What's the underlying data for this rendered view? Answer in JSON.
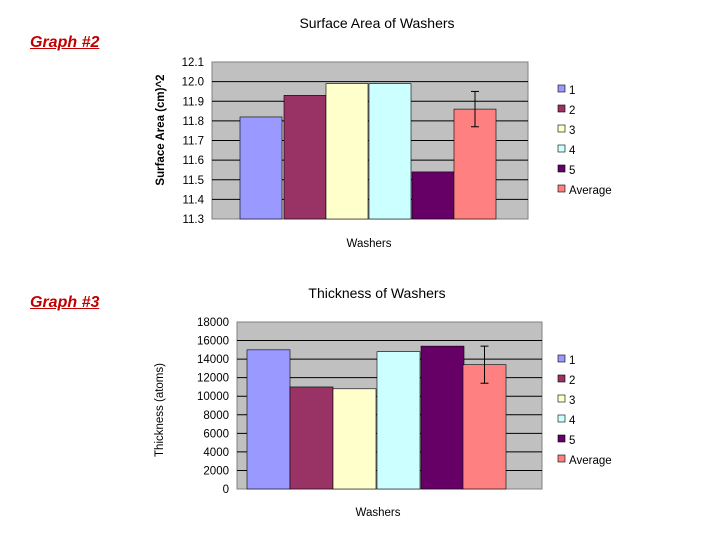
{
  "labels": {
    "graph2": "Graph #2",
    "graph3": "Graph #3"
  },
  "chart_data": [
    {
      "type": "bar",
      "title": "Surface Area of Washers",
      "xlabel": "Washers",
      "ylabel": "Surface Area (cm)^2",
      "ylim": [
        11.3,
        12.1
      ],
      "yticks": [
        "12.1",
        "12.0",
        "11.9",
        "11.8",
        "11.7",
        "11.6",
        "11.5",
        "11.4",
        "11.3"
      ],
      "grid": true,
      "legend_position": "right",
      "series": [
        {
          "name": "1",
          "values": [
            11.82
          ],
          "color": "#9999ff"
        },
        {
          "name": "2",
          "values": [
            11.93
          ],
          "color": "#993366"
        },
        {
          "name": "3",
          "values": [
            11.99
          ],
          "color": "#ffffcc"
        },
        {
          "name": "4",
          "values": [
            11.99
          ],
          "color": "#ccffff"
        },
        {
          "name": "5",
          "values": [
            11.54
          ],
          "color": "#660066"
        },
        {
          "name": "Average",
          "values": [
            11.86
          ],
          "color": "#ff8080",
          "error": 0.09
        }
      ]
    },
    {
      "type": "bar",
      "title": "Thickness of Washers",
      "xlabel": "Washers",
      "ylabel": "Thickness (atoms)",
      "ylim": [
        0,
        18000
      ],
      "yticks": [
        "18000",
        "16000",
        "14000",
        "12000",
        "10000",
        "8000",
        "6000",
        "4000",
        "2000",
        "0"
      ],
      "grid": true,
      "legend_position": "right",
      "series": [
        {
          "name": "1",
          "values": [
            15000
          ],
          "color": "#9999ff"
        },
        {
          "name": "2",
          "values": [
            11000
          ],
          "color": "#993366"
        },
        {
          "name": "3",
          "values": [
            10800
          ],
          "color": "#ffffcc"
        },
        {
          "name": "4",
          "values": [
            14800
          ],
          "color": "#ccffff"
        },
        {
          "name": "5",
          "values": [
            15400
          ],
          "color": "#660066"
        },
        {
          "name": "Average",
          "values": [
            13400
          ],
          "color": "#ff8080",
          "error": 2000
        }
      ]
    }
  ]
}
